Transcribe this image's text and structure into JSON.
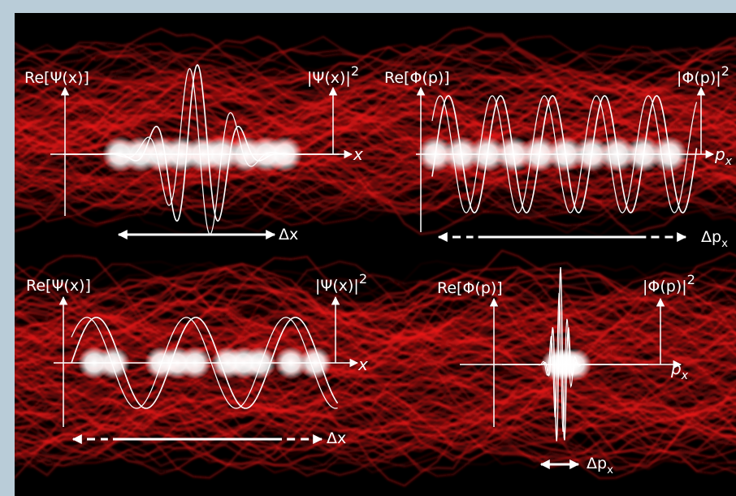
{
  "colors": {
    "page_background": "#b9ccd8",
    "frame_background": "#000000",
    "smoke": "#ff1a1a",
    "lines": "#ffffff"
  },
  "panels": [
    {
      "re_label": "Re[Ψ(x)]",
      "abs_label": "|Ψ(x)|",
      "abs_power": "2",
      "axis_label": "x",
      "axis_sub": "",
      "delta_label": "Δx",
      "spread_arrow_style": "solid"
    },
    {
      "re_label": "Re[Φ(p)]",
      "abs_label": "|Φ(p)|",
      "abs_power": "2",
      "axis_label": "p",
      "axis_sub": "x",
      "delta_label": "Δp",
      "delta_sub": "x",
      "spread_arrow_style": "dashed-ends"
    },
    {
      "re_label": "Re[Ψ(x)]",
      "abs_label": "|Ψ(x)|",
      "abs_power": "2",
      "axis_label": "x",
      "axis_sub": "",
      "delta_label": "Δx",
      "spread_arrow_style": "dashed-ends"
    },
    {
      "re_label": "Re[Φ(p)]",
      "abs_label": "|Φ(p)|",
      "abs_power": "2",
      "axis_label": "p",
      "axis_sub": "x",
      "delta_label": "Δp",
      "delta_sub": "x",
      "spread_arrow_style": "solid"
    }
  ]
}
